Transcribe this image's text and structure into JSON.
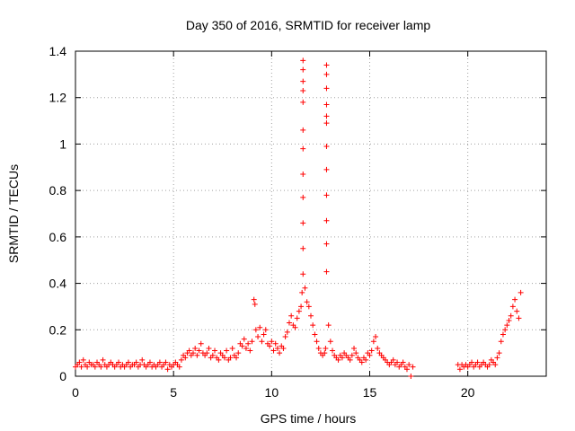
{
  "chart_data": {
    "type": "scatter",
    "title": "Day 350 of 2016, SRMTID for receiver lamp",
    "xlabel": "GPS time / hours",
    "ylabel": "SRMTID / TECUs",
    "xlim": [
      0,
      24
    ],
    "ylim": [
      0,
      1.4
    ],
    "grid": true,
    "marker": "+",
    "color": "#ff0000",
    "xticks": [
      0,
      5,
      10,
      15,
      20
    ],
    "xtick_labels": [
      "0",
      "5",
      "10",
      "15",
      "20"
    ],
    "yticks": [
      0,
      0.2,
      0.4,
      0.6,
      0.8,
      1.0,
      1.2,
      1.4
    ],
    "ytick_labels": [
      "0",
      "0.2",
      "0.4",
      "0.6",
      "0.8",
      "1",
      "1.2",
      "1.4"
    ],
    "series": [
      {
        "name": "SRMTID",
        "x": [
          0.0,
          0.1,
          0.2,
          0.3,
          0.4,
          0.5,
          0.6,
          0.7,
          0.8,
          0.9,
          1.0,
          1.1,
          1.2,
          1.3,
          1.4,
          1.5,
          1.6,
          1.7,
          1.8,
          1.9,
          2.0,
          2.1,
          2.2,
          2.3,
          2.4,
          2.5,
          2.6,
          2.7,
          2.8,
          2.9,
          3.0,
          3.1,
          3.2,
          3.3,
          3.4,
          3.5,
          3.6,
          3.7,
          3.8,
          3.9,
          4.0,
          4.1,
          4.2,
          4.3,
          4.4,
          4.5,
          4.6,
          4.7,
          4.8,
          4.9,
          5.0,
          5.1,
          5.2,
          5.3,
          5.4,
          5.5,
          5.6,
          5.7,
          5.8,
          5.9,
          6.0,
          6.1,
          6.2,
          6.3,
          6.4,
          6.5,
          6.6,
          6.7,
          6.8,
          6.9,
          7.0,
          7.1,
          7.2,
          7.3,
          7.4,
          7.5,
          7.6,
          7.7,
          7.8,
          7.9,
          8.0,
          8.1,
          8.2,
          8.3,
          8.4,
          8.5,
          8.6,
          8.7,
          8.8,
          8.9,
          9.0,
          9.1,
          9.15,
          9.2,
          9.3,
          9.4,
          9.5,
          9.6,
          9.7,
          9.8,
          9.9,
          10.0,
          10.1,
          10.2,
          10.3,
          10.4,
          10.5,
          10.6,
          10.7,
          10.8,
          10.9,
          11.0,
          11.1,
          11.2,
          11.3,
          11.4,
          11.5,
          11.55,
          11.6,
          11.6,
          11.6,
          11.6,
          11.6,
          11.6,
          11.6,
          11.6,
          11.6,
          11.6,
          11.6,
          11.6,
          11.7,
          11.8,
          11.9,
          12.0,
          12.1,
          12.2,
          12.3,
          12.4,
          12.5,
          12.6,
          12.7,
          12.75,
          12.8,
          12.8,
          12.8,
          12.8,
          12.8,
          12.8,
          12.8,
          12.8,
          12.8,
          12.8,
          12.8,
          12.8,
          12.9,
          13.0,
          13.1,
          13.2,
          13.3,
          13.4,
          13.5,
          13.6,
          13.7,
          13.8,
          13.9,
          14.0,
          14.1,
          14.2,
          14.3,
          14.4,
          14.5,
          14.6,
          14.7,
          14.8,
          14.9,
          15.0,
          15.1,
          15.2,
          15.3,
          15.4,
          15.5,
          15.6,
          15.7,
          15.8,
          15.9,
          16.0,
          16.1,
          16.2,
          16.3,
          16.4,
          16.5,
          16.6,
          16.7,
          16.8,
          16.9,
          17.0,
          17.1,
          17.2,
          19.5,
          19.6,
          19.7,
          19.8,
          19.9,
          20.0,
          20.1,
          20.2,
          20.3,
          20.4,
          20.5,
          20.6,
          20.7,
          20.8,
          20.9,
          21.0,
          21.1,
          21.2,
          21.3,
          21.4,
          21.5,
          21.6,
          21.7,
          21.8,
          21.9,
          22.0,
          22.1,
          22.2,
          22.3,
          22.4,
          22.5,
          22.6,
          22.7
        ],
        "y": [
          0.04,
          0.05,
          0.06,
          0.04,
          0.07,
          0.05,
          0.04,
          0.06,
          0.05,
          0.05,
          0.04,
          0.06,
          0.05,
          0.04,
          0.07,
          0.05,
          0.04,
          0.05,
          0.06,
          0.05,
          0.04,
          0.05,
          0.06,
          0.04,
          0.05,
          0.04,
          0.05,
          0.06,
          0.04,
          0.05,
          0.05,
          0.06,
          0.04,
          0.05,
          0.07,
          0.05,
          0.04,
          0.05,
          0.06,
          0.04,
          0.05,
          0.04,
          0.05,
          0.06,
          0.04,
          0.05,
          0.06,
          0.03,
          0.05,
          0.04,
          0.05,
          0.06,
          0.05,
          0.04,
          0.07,
          0.09,
          0.08,
          0.1,
          0.11,
          0.09,
          0.1,
          0.12,
          0.09,
          0.11,
          0.14,
          0.1,
          0.09,
          0.1,
          0.12,
          0.08,
          0.09,
          0.11,
          0.08,
          0.07,
          0.1,
          0.09,
          0.08,
          0.11,
          0.07,
          0.08,
          0.12,
          0.09,
          0.08,
          0.1,
          0.14,
          0.13,
          0.16,
          0.12,
          0.14,
          0.11,
          0.15,
          0.33,
          0.31,
          0.2,
          0.17,
          0.21,
          0.15,
          0.18,
          0.2,
          0.14,
          0.13,
          0.15,
          0.11,
          0.14,
          0.12,
          0.1,
          0.13,
          0.12,
          0.17,
          0.19,
          0.23,
          0.26,
          0.22,
          0.21,
          0.25,
          0.28,
          0.3,
          0.36,
          1.36,
          1.32,
          1.27,
          1.23,
          1.18,
          1.06,
          0.98,
          0.87,
          0.77,
          0.66,
          0.55,
          0.44,
          0.38,
          0.32,
          0.3,
          0.26,
          0.22,
          0.18,
          0.15,
          0.12,
          0.1,
          0.09,
          0.1,
          0.12,
          1.34,
          1.3,
          1.24,
          1.17,
          1.12,
          1.09,
          0.99,
          0.89,
          0.78,
          0.67,
          0.57,
          0.45,
          0.22,
          0.15,
          0.11,
          0.09,
          0.08,
          0.07,
          0.09,
          0.08,
          0.1,
          0.09,
          0.08,
          0.07,
          0.09,
          0.12,
          0.1,
          0.08,
          0.07,
          0.06,
          0.08,
          0.07,
          0.1,
          0.09,
          0.11,
          0.15,
          0.17,
          0.12,
          0.1,
          0.09,
          0.08,
          0.07,
          0.06,
          0.05,
          0.06,
          0.07,
          0.05,
          0.06,
          0.04,
          0.05,
          0.06,
          0.04,
          0.03,
          0.05,
          0.0,
          0.04,
          0.05,
          0.03,
          0.05,
          0.04,
          0.05,
          0.04,
          0.05,
          0.06,
          0.04,
          0.05,
          0.06,
          0.04,
          0.05,
          0.06,
          0.05,
          0.04,
          0.05,
          0.07,
          0.06,
          0.05,
          0.08,
          0.1,
          0.15,
          0.18,
          0.2,
          0.22,
          0.24,
          0.26,
          0.3,
          0.33,
          0.28,
          0.25,
          0.36
        ]
      }
    ]
  }
}
